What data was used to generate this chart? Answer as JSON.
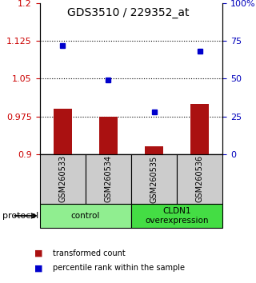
{
  "title": "GDS3510 / 229352_at",
  "samples": [
    "GSM260533",
    "GSM260534",
    "GSM260535",
    "GSM260536"
  ],
  "bar_values": [
    0.99,
    0.975,
    0.915,
    1.0
  ],
  "bar_base": 0.9,
  "percentile_values": [
    72,
    49,
    28,
    68
  ],
  "ylim": [
    0.9,
    1.2
  ],
  "y_ticks": [
    0.9,
    0.975,
    1.05,
    1.125,
    1.2
  ],
  "y_tick_labels": [
    "0.9",
    "0.975",
    "1.05",
    "1.125",
    "1.2"
  ],
  "y2_ticks": [
    0,
    25,
    50,
    75,
    100
  ],
  "y2_tick_labels": [
    "0",
    "25",
    "50",
    "75",
    "100%"
  ],
  "dotted_lines": [
    0.975,
    1.05,
    1.125
  ],
  "groups": [
    {
      "label": "control",
      "color": "#90EE90"
    },
    {
      "label": "CLDN1\noverexpression",
      "color": "#44DD44"
    }
  ],
  "bar_color": "#AA1111",
  "dot_color": "#0000CC",
  "protocol_label": "protocol",
  "legend_items": [
    {
      "color": "#AA1111",
      "label": "transformed count"
    },
    {
      "color": "#0000CC",
      "label": "percentile rank within the sample"
    }
  ],
  "tick_label_color_left": "#CC0000",
  "tick_label_color_right": "#0000BB",
  "bar_width": 0.4,
  "x_positions": [
    0,
    1,
    2,
    3
  ]
}
